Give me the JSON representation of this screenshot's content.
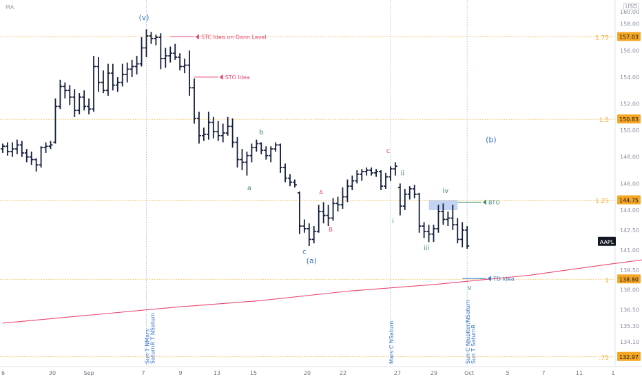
{
  "header": {
    "indicator_label": "MA",
    "currency_label": "USD"
  },
  "chart_data": {
    "type": "ohlc",
    "symbol": "AAPL",
    "price_axis": {
      "ylim": [
        131.3,
        159.8
      ],
      "ticks": [
        158.0,
        156.0,
        154.0,
        152.0,
        150.0,
        148.0,
        146.0,
        144.0,
        142.5,
        141.0,
        139.5,
        138.0,
        136.5,
        135.3,
        134.1,
        133.0
      ],
      "tick_labels": [
        "158.00",
        "156.00",
        "154.00",
        "152.00",
        "150.00",
        "148.00",
        "146.00",
        "144.00",
        "142.50",
        "141.00",
        "139.50",
        "138.00",
        "136.50",
        "135.30",
        "134.10",
        "133.00"
      ],
      "top_cut_label": "160.00",
      "price_tags": [
        {
          "label": "157.03",
          "value": 157.03,
          "color": "#f5a623"
        },
        {
          "label": "150.83",
          "value": 150.83,
          "color": "#f5a623"
        },
        {
          "label": "144.75",
          "value": 144.75,
          "color": "#f5a623"
        },
        {
          "label": "138.80",
          "value": 138.8,
          "color": "#f5a623"
        },
        {
          "label": "132.97",
          "value": 132.97,
          "color": "#f5a623"
        }
      ],
      "symbol_tag": {
        "label": "AAPL",
        "value": 141.0,
        "color": "#131722"
      }
    },
    "fib_levels": [
      {
        "label": "1.75",
        "value": 157.03
      },
      {
        "label": "1.5",
        "value": 150.83
      },
      {
        "label": "1.25",
        "value": 144.75
      },
      {
        "label": "1",
        "value": 138.8
      },
      {
        "label": ".75",
        "value": 132.97
      }
    ],
    "x_axis": {
      "labels": [
        "30",
        "Sep",
        "7",
        "9",
        "13",
        "15",
        "20",
        "22",
        "27",
        "29",
        "Oct",
        "5",
        "7",
        "11",
        "1"
      ],
      "edge_label": "6"
    },
    "bars": [
      {
        "i": 0,
        "o": 148.6,
        "h": 149.0,
        "l": 148.3,
        "c": 148.8
      },
      {
        "i": 1,
        "o": 148.8,
        "h": 149.1,
        "l": 148.1,
        "c": 148.4
      },
      {
        "i": 2,
        "o": 148.4,
        "h": 149.1,
        "l": 148.0,
        "c": 148.6
      },
      {
        "i": 3,
        "o": 148.6,
        "h": 149.3,
        "l": 148.2,
        "c": 148.9
      },
      {
        "i": 4,
        "o": 148.9,
        "h": 149.2,
        "l": 148.0,
        "c": 148.3
      },
      {
        "i": 5,
        "o": 148.3,
        "h": 148.6,
        "l": 147.6,
        "c": 148.0
      },
      {
        "i": 6,
        "o": 148.0,
        "h": 148.4,
        "l": 147.4,
        "c": 147.8
      },
      {
        "i": 7,
        "o": 147.8,
        "h": 147.9,
        "l": 146.9,
        "c": 147.4
      },
      {
        "i": 8,
        "o": 147.4,
        "h": 148.8,
        "l": 147.2,
        "c": 148.7
      },
      {
        "i": 9,
        "o": 148.7,
        "h": 149.1,
        "l": 148.3,
        "c": 148.8
      },
      {
        "i": 10,
        "o": 148.8,
        "h": 149.2,
        "l": 148.6,
        "c": 148.9
      },
      {
        "i": 11,
        "o": 149.1,
        "h": 152.4,
        "l": 149.0,
        "c": 151.8
      },
      {
        "i": 12,
        "o": 151.8,
        "h": 153.8,
        "l": 151.6,
        "c": 153.3
      },
      {
        "i": 13,
        "o": 153.3,
        "h": 153.6,
        "l": 152.4,
        "c": 153.0
      },
      {
        "i": 14,
        "o": 153.0,
        "h": 153.4,
        "l": 151.9,
        "c": 152.5
      },
      {
        "i": 15,
        "o": 152.5,
        "h": 153.1,
        "l": 151.0,
        "c": 151.5
      },
      {
        "i": 16,
        "o": 151.5,
        "h": 152.8,
        "l": 151.2,
        "c": 152.5
      },
      {
        "i": 17,
        "o": 152.5,
        "h": 153.0,
        "l": 151.5,
        "c": 151.8
      },
      {
        "i": 18,
        "o": 151.8,
        "h": 152.4,
        "l": 151.2,
        "c": 151.6
      },
      {
        "i": 19,
        "o": 151.6,
        "h": 155.6,
        "l": 151.4,
        "c": 154.8
      },
      {
        "i": 20,
        "o": 154.8,
        "h": 155.5,
        "l": 152.9,
        "c": 153.6
      },
      {
        "i": 21,
        "o": 153.6,
        "h": 154.5,
        "l": 152.8,
        "c": 153.0
      },
      {
        "i": 22,
        "o": 153.0,
        "h": 155.0,
        "l": 152.6,
        "c": 154.3
      },
      {
        "i": 23,
        "o": 154.3,
        "h": 155.0,
        "l": 153.0,
        "c": 153.4
      },
      {
        "i": 24,
        "o": 153.4,
        "h": 154.0,
        "l": 152.9,
        "c": 153.6
      },
      {
        "i": 25,
        "o": 153.6,
        "h": 155.0,
        "l": 153.3,
        "c": 154.2
      },
      {
        "i": 26,
        "o": 154.2,
        "h": 155.1,
        "l": 153.6,
        "c": 154.6
      },
      {
        "i": 27,
        "o": 154.6,
        "h": 155.3,
        "l": 154.0,
        "c": 154.8
      },
      {
        "i": 28,
        "o": 154.8,
        "h": 155.6,
        "l": 154.2,
        "c": 155.0
      },
      {
        "i": 29,
        "o": 155.0,
        "h": 157.0,
        "l": 154.8,
        "c": 156.2
      },
      {
        "i": 30,
        "o": 156.2,
        "h": 157.6,
        "l": 155.5,
        "c": 157.1
      },
      {
        "i": 31,
        "o": 157.1,
        "h": 157.4,
        "l": 156.5,
        "c": 156.9
      },
      {
        "i": 32,
        "o": 156.9,
        "h": 157.2,
        "l": 156.4,
        "c": 157.0
      },
      {
        "i": 33,
        "o": 157.0,
        "h": 157.3,
        "l": 154.6,
        "c": 155.4
      },
      {
        "i": 34,
        "o": 155.4,
        "h": 156.2,
        "l": 154.7,
        "c": 155.6
      },
      {
        "i": 35,
        "o": 155.6,
        "h": 156.3,
        "l": 155.1,
        "c": 155.8
      },
      {
        "i": 36,
        "o": 155.8,
        "h": 156.5,
        "l": 155.3,
        "c": 155.5
      },
      {
        "i": 37,
        "o": 155.5,
        "h": 155.8,
        "l": 154.5,
        "c": 154.8
      },
      {
        "i": 38,
        "o": 154.8,
        "h": 155.4,
        "l": 154.3,
        "c": 154.9
      },
      {
        "i": 39,
        "o": 154.9,
        "h": 156.0,
        "l": 152.6,
        "c": 153.2
      },
      {
        "i": 40,
        "o": 153.2,
        "h": 153.9,
        "l": 150.5,
        "c": 150.9
      },
      {
        "i": 41,
        "o": 150.9,
        "h": 151.4,
        "l": 149.0,
        "c": 149.6
      },
      {
        "i": 42,
        "o": 149.6,
        "h": 150.2,
        "l": 149.2,
        "c": 149.7
      },
      {
        "i": 43,
        "o": 149.7,
        "h": 151.4,
        "l": 149.3,
        "c": 150.6
      },
      {
        "i": 44,
        "o": 150.6,
        "h": 151.0,
        "l": 149.4,
        "c": 149.9
      },
      {
        "i": 45,
        "o": 149.9,
        "h": 150.7,
        "l": 149.2,
        "c": 149.6
      },
      {
        "i": 46,
        "o": 149.6,
        "h": 150.5,
        "l": 149.1,
        "c": 149.8
      },
      {
        "i": 47,
        "o": 149.8,
        "h": 151.0,
        "l": 149.6,
        "c": 150.3
      },
      {
        "i": 48,
        "o": 150.3,
        "h": 150.9,
        "l": 148.7,
        "c": 149.1
      },
      {
        "i": 49,
        "o": 149.1,
        "h": 149.5,
        "l": 147.2,
        "c": 147.8
      },
      {
        "i": 50,
        "o": 147.8,
        "h": 148.6,
        "l": 147.0,
        "c": 147.6
      },
      {
        "i": 51,
        "o": 147.6,
        "h": 148.4,
        "l": 146.6,
        "c": 148.1
      },
      {
        "i": 52,
        "o": 148.1,
        "h": 149.0,
        "l": 147.6,
        "c": 148.7
      },
      {
        "i": 53,
        "o": 148.7,
        "h": 149.3,
        "l": 148.4,
        "c": 149.0
      },
      {
        "i": 54,
        "o": 149.0,
        "h": 149.1,
        "l": 148.2,
        "c": 148.5
      },
      {
        "i": 55,
        "o": 148.5,
        "h": 148.8,
        "l": 147.8,
        "c": 148.1
      },
      {
        "i": 56,
        "o": 148.1,
        "h": 148.8,
        "l": 147.6,
        "c": 148.6
      },
      {
        "i": 57,
        "o": 148.6,
        "h": 149.1,
        "l": 148.4,
        "c": 148.9
      },
      {
        "i": 58,
        "o": 148.9,
        "h": 149.0,
        "l": 146.8,
        "c": 147.2
      },
      {
        "i": 59,
        "o": 147.2,
        "h": 147.5,
        "l": 146.1,
        "c": 146.4
      },
      {
        "i": 60,
        "o": 146.4,
        "h": 146.7,
        "l": 145.8,
        "c": 146.1
      },
      {
        "i": 61,
        "o": 146.1,
        "h": 146.3,
        "l": 145.7,
        "c": 145.9
      },
      {
        "i": 62,
        "o": 145.3,
        "h": 145.4,
        "l": 142.2,
        "c": 142.8
      },
      {
        "i": 63,
        "o": 142.8,
        "h": 143.3,
        "l": 142.3,
        "c": 142.6
      },
      {
        "i": 64,
        "o": 142.6,
        "h": 143.0,
        "l": 141.3,
        "c": 141.8
      },
      {
        "i": 65,
        "o": 141.8,
        "h": 142.8,
        "l": 141.5,
        "c": 142.4
      },
      {
        "i": 66,
        "o": 142.4,
        "h": 144.4,
        "l": 142.3,
        "c": 143.9
      },
      {
        "i": 67,
        "o": 143.9,
        "h": 144.6,
        "l": 143.0,
        "c": 143.6
      },
      {
        "i": 68,
        "o": 143.6,
        "h": 144.4,
        "l": 142.8,
        "c": 143.4
      },
      {
        "i": 69,
        "o": 143.4,
        "h": 144.9,
        "l": 143.2,
        "c": 144.5
      },
      {
        "i": 70,
        "o": 144.5,
        "h": 145.0,
        "l": 143.9,
        "c": 144.4
      },
      {
        "i": 71,
        "o": 144.4,
        "h": 145.7,
        "l": 144.1,
        "c": 145.0
      },
      {
        "i": 72,
        "o": 145.0,
        "h": 146.3,
        "l": 144.6,
        "c": 145.8
      },
      {
        "i": 73,
        "o": 145.8,
        "h": 146.6,
        "l": 145.5,
        "c": 146.2
      },
      {
        "i": 74,
        "o": 146.2,
        "h": 147.0,
        "l": 146.0,
        "c": 146.7
      },
      {
        "i": 75,
        "o": 146.7,
        "h": 147.1,
        "l": 146.2,
        "c": 146.9
      },
      {
        "i": 76,
        "o": 146.9,
        "h": 147.2,
        "l": 146.6,
        "c": 147.0
      },
      {
        "i": 77,
        "o": 147.0,
        "h": 147.2,
        "l": 146.6,
        "c": 146.8
      },
      {
        "i": 78,
        "o": 146.8,
        "h": 147.1,
        "l": 146.5,
        "c": 146.9
      },
      {
        "i": 79,
        "o": 146.9,
        "h": 147.0,
        "l": 145.5,
        "c": 145.8
      },
      {
        "i": 80,
        "o": 145.8,
        "h": 146.8,
        "l": 145.6,
        "c": 146.5
      },
      {
        "i": 81,
        "o": 146.5,
        "h": 147.3,
        "l": 146.2,
        "c": 147.1
      },
      {
        "i": 82,
        "o": 147.1,
        "h": 147.6,
        "l": 146.6,
        "c": 147.3
      },
      {
        "i": 83,
        "o": 145.7,
        "h": 146.0,
        "l": 143.6,
        "c": 144.3
      },
      {
        "i": 84,
        "o": 144.3,
        "h": 145.6,
        "l": 144.0,
        "c": 145.2
      },
      {
        "i": 85,
        "o": 145.2,
        "h": 145.8,
        "l": 144.8,
        "c": 145.6
      },
      {
        "i": 86,
        "o": 145.6,
        "h": 145.9,
        "l": 144.9,
        "c": 145.2
      },
      {
        "i": 87,
        "o": 145.2,
        "h": 145.3,
        "l": 142.3,
        "c": 142.8
      },
      {
        "i": 88,
        "o": 142.8,
        "h": 143.1,
        "l": 141.9,
        "c": 142.4
      },
      {
        "i": 89,
        "o": 142.4,
        "h": 142.9,
        "l": 141.6,
        "c": 142.2
      },
      {
        "i": 90,
        "o": 142.2,
        "h": 142.9,
        "l": 141.6,
        "c": 142.6
      },
      {
        "i": 91,
        "o": 142.6,
        "h": 144.4,
        "l": 142.3,
        "c": 143.9
      },
      {
        "i": 92,
        "o": 143.9,
        "h": 144.5,
        "l": 142.9,
        "c": 143.3
      },
      {
        "i": 93,
        "o": 143.3,
        "h": 143.9,
        "l": 142.8,
        "c": 143.4
      },
      {
        "i": 94,
        "o": 143.4,
        "h": 144.4,
        "l": 142.5,
        "c": 142.9
      },
      {
        "i": 95,
        "o": 142.9,
        "h": 143.4,
        "l": 141.5,
        "c": 141.8
      },
      {
        "i": 96,
        "o": 141.8,
        "h": 143.1,
        "l": 141.2,
        "c": 142.5
      },
      {
        "i": 97,
        "o": 142.5,
        "h": 142.8,
        "l": 141.1,
        "c": 141.3
      }
    ],
    "moving_average": {
      "name": "MA",
      "color": "#e8466e",
      "points": [
        [
          0,
          135.5
        ],
        [
          18,
          136.1
        ],
        [
          36,
          136.7
        ],
        [
          54,
          137.2
        ],
        [
          72,
          137.9
        ],
        [
          90,
          138.4
        ],
        [
          110,
          139.1
        ],
        [
          126,
          139.9
        ],
        [
          143,
          140.7
        ],
        [
          158,
          141.2
        ]
      ]
    },
    "vertical_lines": [
      {
        "i": 30,
        "label": "Sun T NMars\nSaturnR T NSaturn"
      },
      {
        "i": 81,
        "label": "Mars C NSaturn"
      },
      {
        "i": 97,
        "label": "Sun C NJupiter/NSaturn\nSun T SaturnR"
      }
    ],
    "wave_labels": [
      {
        "text": "(v)",
        "i": 29.5,
        "price": 158.3,
        "color": "#3a74c8"
      },
      {
        "text": "b",
        "i": 54,
        "price": 149.7,
        "color": "#3e8e6e"
      },
      {
        "text": "a",
        "i": 51.5,
        "price": 145.5,
        "color": "#3e8e6e"
      },
      {
        "text": "A",
        "i": 66.5,
        "price": 145.2,
        "color": "#e8466e"
      },
      {
        "text": "B",
        "i": 68.5,
        "price": 142.4,
        "color": "#e8466e"
      },
      {
        "text": "c",
        "i": 63,
        "price": 140.7,
        "color": "#3a74c8"
      },
      {
        "text": "(a)",
        "i": 64.5,
        "price": 140.0,
        "color": "#3a74c8"
      },
      {
        "text": "c",
        "i": 80.5,
        "price": 148.3,
        "color": "#e8466e"
      },
      {
        "text": "ii",
        "i": 83.5,
        "price": 146.6,
        "color": "#3e8e6e"
      },
      {
        "text": "i",
        "i": 81.5,
        "price": 143.0,
        "color": "#3e8e6e"
      },
      {
        "text": "iv",
        "i": 92.5,
        "price": 145.3,
        "color": "#3e8e6e"
      },
      {
        "text": "iii",
        "i": 88.5,
        "price": 141.0,
        "color": "#3e8e6e"
      },
      {
        "text": "(b)",
        "i": 102,
        "price": 149.1,
        "color": "#3a74c8"
      },
      {
        "text": "v",
        "i": 97.5,
        "price": 138.0,
        "color": "#3e8e6e"
      }
    ],
    "annotations": [
      {
        "label": "STC Idea on Gann Level",
        "color": "#e8466e",
        "price": 157.03,
        "from_i": 35,
        "to_i": 40,
        "label_i": 41
      },
      {
        "label": "STO Idea",
        "color": "#e8466e",
        "price": 154.0,
        "from_i": 40,
        "to_i": 45,
        "label_i": 46
      },
      {
        "label": "BTO",
        "color": "#3e8e6e",
        "price": 144.6,
        "from_i": 95,
        "to_i": 100,
        "label_i": 101
      },
      {
        "label": "TD Idea",
        "color": "#3a74c8",
        "price": 138.85,
        "from_i": 96,
        "to_i": 101,
        "label_i": 102
      }
    ],
    "highlight_box": {
      "from_i": 89,
      "to_i": 95,
      "top": 144.75,
      "bottom": 144.0,
      "color": "#b7cdf0"
    }
  }
}
